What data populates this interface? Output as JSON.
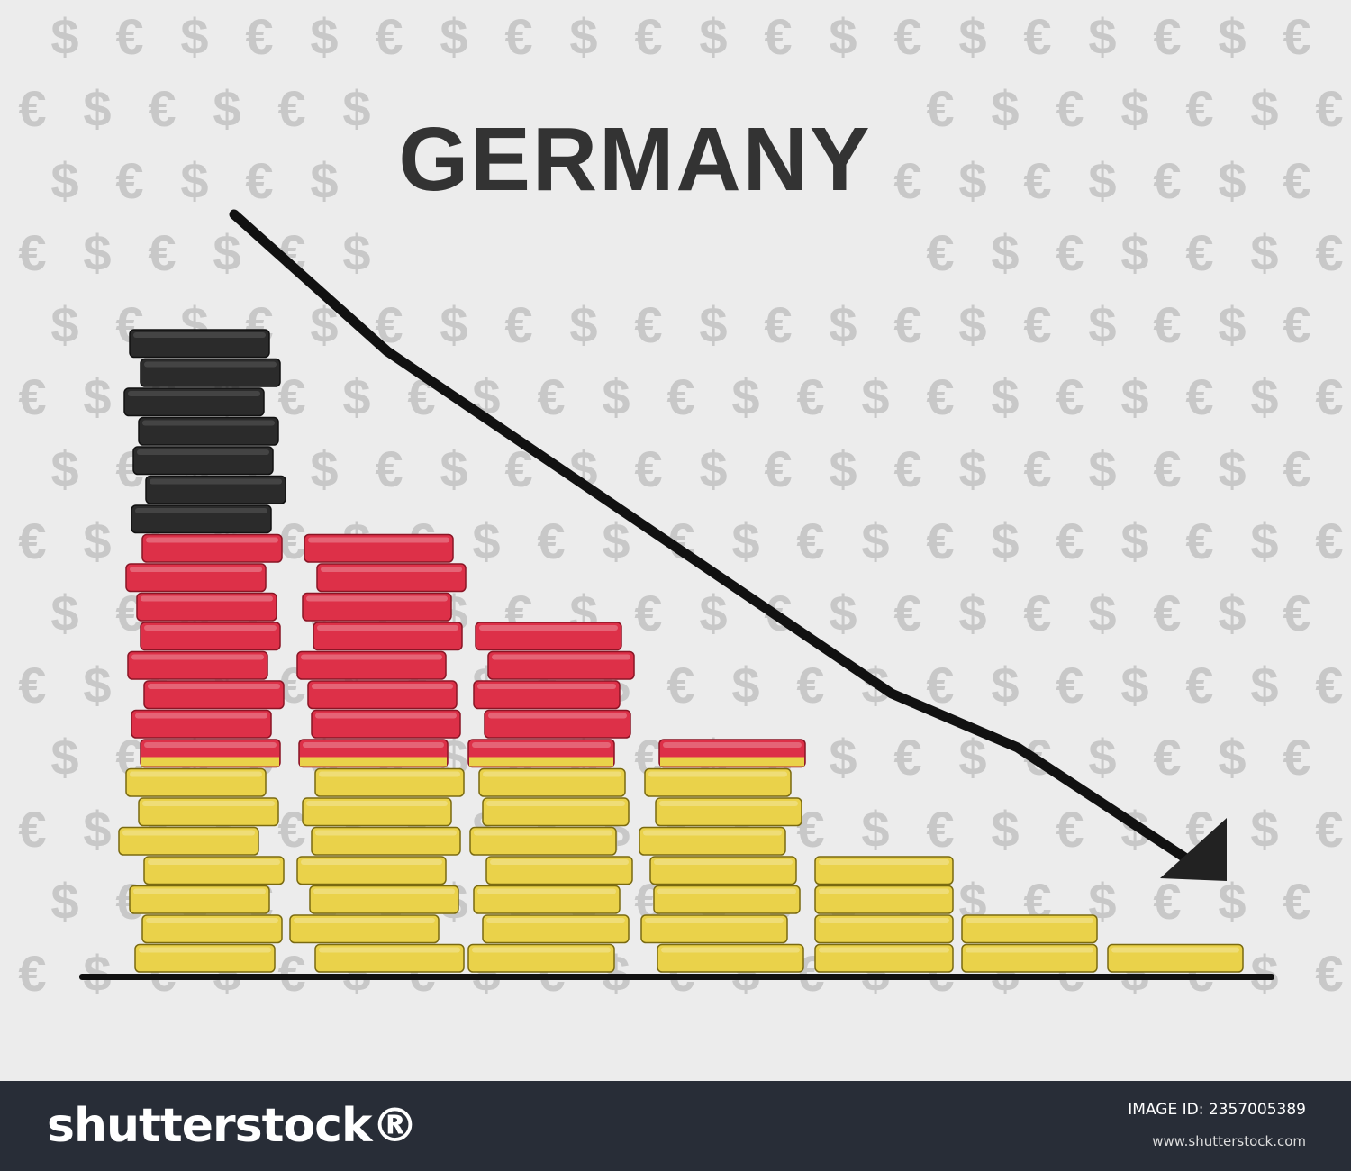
{
  "illustration": {
    "title": "GERMANY",
    "symbols": [
      "$",
      "€"
    ],
    "colors": {
      "background": "#ececec",
      "symbol": "#c8c8c8",
      "black": "#2b2b2b",
      "red": "#dd3048",
      "gold": "#ead24a",
      "arrow": "#111111",
      "footer": "#282d37"
    },
    "stacks": [
      {
        "black": 7,
        "red": 7,
        "split": 1,
        "gold": 7
      },
      {
        "black": 0,
        "red": 7,
        "split": 1,
        "gold": 7
      },
      {
        "black": 0,
        "red": 4,
        "split": 1,
        "gold": 7
      },
      {
        "black": 0,
        "red": 0,
        "split": 1,
        "gold": 7
      },
      {
        "black": 0,
        "red": 0,
        "split": 0,
        "gold": 4
      },
      {
        "black": 0,
        "red": 0,
        "split": 0,
        "gold": 2
      },
      {
        "black": 0,
        "red": 0,
        "split": 0,
        "gold": 1
      }
    ],
    "trend": "down"
  },
  "footer": {
    "brand": "shutterstock®",
    "image_id": "IMAGE ID: 2357005389",
    "url": "www.shutterstock.com"
  }
}
